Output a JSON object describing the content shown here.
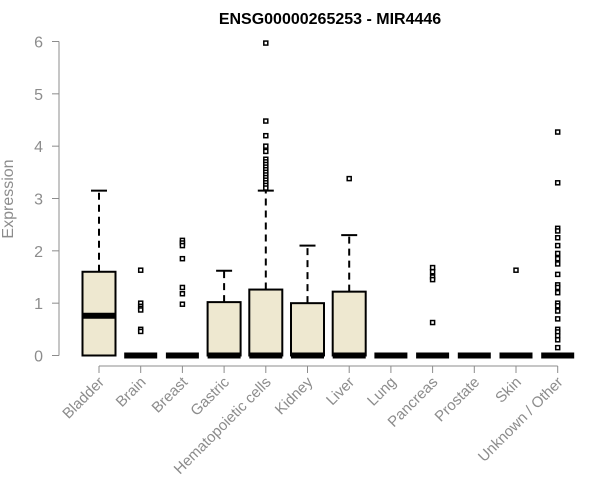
{
  "chart_data": {
    "type": "boxplot",
    "title": "ENSG00000265253 - MIR4446",
    "ylabel": "Expression",
    "ylim": [
      0,
      6
    ],
    "yticks": [
      "0",
      "1",
      "2",
      "3",
      "4",
      "5",
      "6"
    ],
    "colors": {
      "box_fill": "#eee8d0",
      "axis": "#8c8c8c"
    },
    "categories": [
      {
        "name": "Bladder",
        "min": 0,
        "q1": 0,
        "median": 0.76,
        "q3": 1.6,
        "max": 3.15,
        "outliers": []
      },
      {
        "name": "Brain",
        "min": 0,
        "q1": 0,
        "median": 0,
        "q3": 0,
        "max": 0,
        "outliers": [
          1.63,
          1.0,
          0.94,
          0.9,
          0.87,
          0.5,
          0.46
        ]
      },
      {
        "name": "Breast",
        "min": 0,
        "q1": 0,
        "median": 0,
        "q3": 0,
        "max": 0,
        "outliers": [
          2.2,
          2.15,
          2.1,
          1.85,
          1.3,
          1.18,
          0.98
        ]
      },
      {
        "name": "Gastric",
        "min": 0,
        "q1": 0,
        "median": 0,
        "q3": 1.02,
        "max": 1.62,
        "outliers": []
      },
      {
        "name": "Hematopoietic cells",
        "min": 0,
        "q1": 0,
        "median": 0,
        "q3": 1.26,
        "max": 3.15,
        "outliers": [
          5.97,
          4.48,
          4.2,
          4.0,
          3.9,
          3.75,
          3.7,
          3.65,
          3.6,
          3.55,
          3.5,
          3.45,
          3.4,
          3.35,
          3.3,
          3.25,
          3.2
        ]
      },
      {
        "name": "Kidney",
        "min": 0,
        "q1": 0,
        "median": 0,
        "q3": 1.0,
        "max": 2.1,
        "outliers": []
      },
      {
        "name": "Liver",
        "min": 0,
        "q1": 0,
        "median": 0,
        "q3": 1.22,
        "max": 2.3,
        "outliers": [
          3.38
        ]
      },
      {
        "name": "Lung",
        "min": 0,
        "q1": 0,
        "median": 0,
        "q3": 0,
        "max": 0,
        "outliers": []
      },
      {
        "name": "Pancreas",
        "min": 0,
        "q1": 0,
        "median": 0,
        "q3": 0,
        "max": 0,
        "outliers": [
          1.68,
          1.6,
          1.5,
          1.45,
          0.63
        ]
      },
      {
        "name": "Prostate",
        "min": 0,
        "q1": 0,
        "median": 0,
        "q3": 0,
        "max": 0,
        "outliers": []
      },
      {
        "name": "Skin",
        "min": 0,
        "q1": 0,
        "median": 0,
        "q3": 0,
        "max": 0,
        "outliers": [
          1.63
        ]
      },
      {
        "name": "Unknown / Other",
        "min": 0,
        "q1": 0,
        "median": 0,
        "q3": 0,
        "max": 0,
        "outliers": [
          4.27,
          3.3,
          2.43,
          2.38,
          2.25,
          2.1,
          1.95,
          1.85,
          1.75,
          1.55,
          1.35,
          1.3,
          1.2,
          1.0,
          0.95,
          0.85,
          0.7,
          0.5,
          0.45,
          0.38,
          0.3,
          0.15
        ]
      }
    ]
  }
}
